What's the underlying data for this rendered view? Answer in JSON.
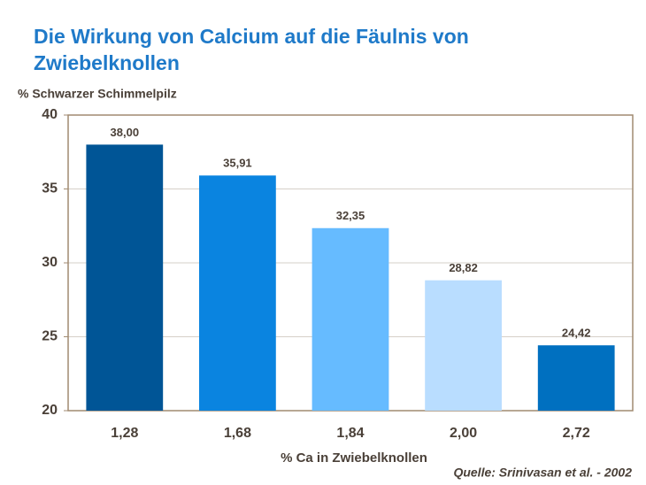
{
  "chart_data": {
    "type": "bar",
    "title": "Die Wirkung von Calcium auf die Fäulnis von Zwiebelknollen",
    "y_label": "% Schwarzer Schimmelpilz",
    "x_label": "% Ca in Zwiebelknollen",
    "source": "Quelle: Srinivasan et al. - 2002",
    "categories": [
      "1,28",
      "1,68",
      "1,84",
      "2,00",
      "2,72"
    ],
    "values": [
      38.0,
      35.91,
      32.35,
      28.82,
      24.42
    ],
    "value_labels": [
      "38,00",
      "35,91",
      "32,35",
      "28,82",
      "24,42"
    ],
    "colors": [
      "#005596",
      "#0a84e0",
      "#66bbff",
      "#b9ddff",
      "#0070c0"
    ],
    "ylim": [
      20,
      40
    ],
    "yticks": [
      20,
      25,
      30,
      35,
      40
    ],
    "grid": true
  }
}
